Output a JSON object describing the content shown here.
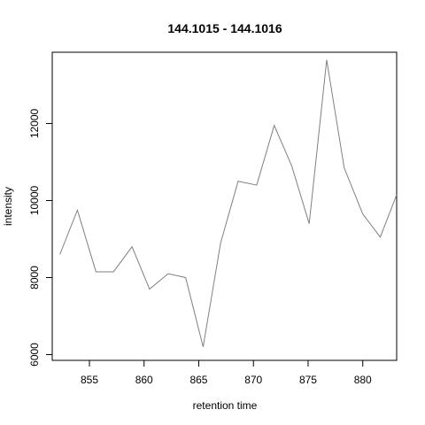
{
  "chart_data": {
    "type": "line",
    "title": "144.1015 - 144.1016",
    "xlabel": "retention time",
    "ylabel": "intensity",
    "xlim": [
      851.6,
      883.1
    ],
    "ylim": [
      5850,
      13850
    ],
    "xticks": [
      855,
      860,
      865,
      870,
      875,
      880
    ],
    "yticks": [
      6000,
      8000,
      10000,
      12000
    ],
    "grid": false,
    "line_color": "#808080",
    "series": [
      {
        "x": [
          852.3,
          853.9,
          855.6,
          857.2,
          858.9,
          860.5,
          862.2,
          863.8,
          865.4,
          867.0,
          868.6,
          870.3,
          871.9,
          873.5,
          875.1,
          876.7,
          878.3,
          880.0,
          881.6,
          883.1
        ],
        "y": [
          8600,
          9750,
          8150,
          8150,
          8800,
          7700,
          8100,
          8000,
          6200,
          8900,
          10500,
          10400,
          11950,
          10900,
          9400,
          13650,
          10850,
          9650,
          9050,
          10150
        ]
      }
    ]
  }
}
